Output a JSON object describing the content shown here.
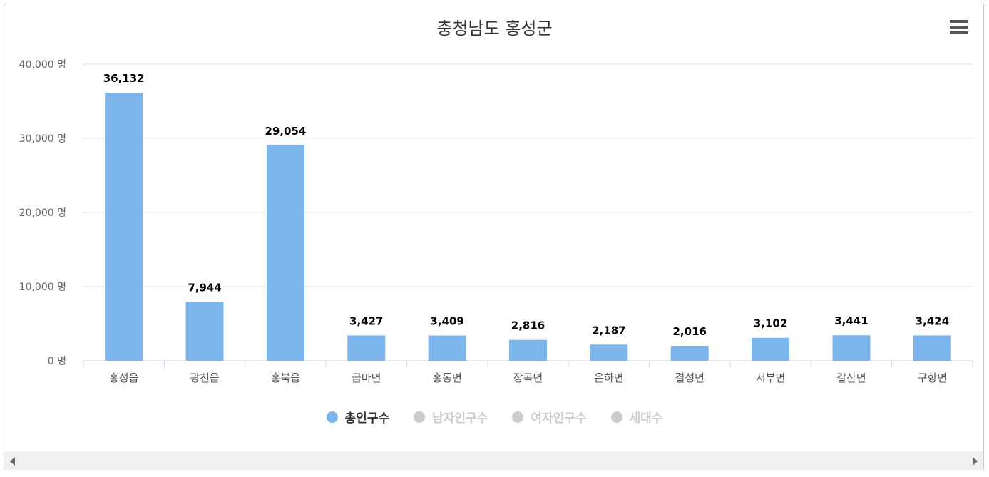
{
  "chart_data": {
    "type": "bar",
    "title": "충청남도 홍성군",
    "categories": [
      "홍성읍",
      "광천읍",
      "홍북읍",
      "금마면",
      "홍동면",
      "장곡면",
      "은하면",
      "결성면",
      "서부면",
      "갈산면",
      "구항면"
    ],
    "series": [
      {
        "name": "총인구수",
        "values": [
          36132,
          7944,
          29054,
          3427,
          3409,
          2816,
          2187,
          2016,
          3102,
          3441,
          3424
        ],
        "color": "#7cb5ec"
      }
    ],
    "value_labels": [
      "36,132",
      "7,944",
      "29,054",
      "3,427",
      "3,409",
      "2,816",
      "2,187",
      "2,016",
      "3,102",
      "3,441",
      "3,424"
    ],
    "ylim": [
      0,
      40000
    ],
    "yticks": [
      0,
      10000,
      20000,
      30000,
      40000
    ],
    "ytick_labels": [
      "0 명",
      "10,000 명",
      "20,000 명",
      "30,000 명",
      "40,000 명"
    ],
    "grid": true,
    "legend_position": "bottom-center",
    "legend": [
      {
        "label": "총인구수",
        "color": "#7cb5ec",
        "active": true
      },
      {
        "label": "남자인구수",
        "color": "#cccccc",
        "active": false
      },
      {
        "label": "여자인구수",
        "color": "#cccccc",
        "active": false
      },
      {
        "label": "세대수",
        "color": "#cccccc",
        "active": false
      }
    ]
  },
  "icons": {
    "menu": "hamburger-menu-icon",
    "scroll_left": "arrow-left-icon",
    "scroll_right": "arrow-right-icon"
  }
}
